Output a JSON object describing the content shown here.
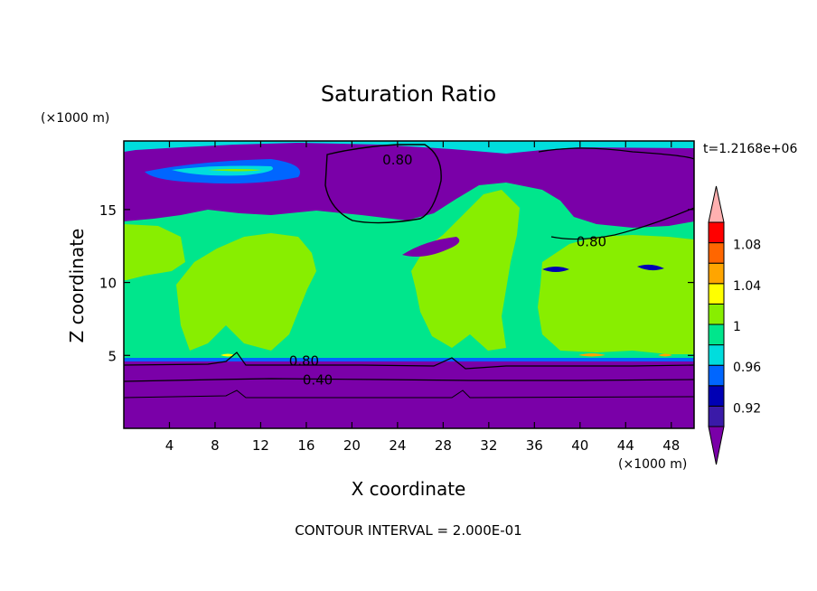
{
  "chart_data": {
    "type": "heatmap",
    "title": "Saturation Ratio",
    "xlabel": "X coordinate",
    "ylabel": "Z coordinate",
    "x_unit": "(×1000 m)",
    "y_unit": "(×1000 m)",
    "time_label": "t=1.2168e+06",
    "footer": "CONTOUR INTERVAL = 2.000E-01",
    "xlim": [
      0,
      50
    ],
    "ylim": [
      0,
      19.7
    ],
    "x_ticks": [
      4,
      8,
      12,
      16,
      20,
      24,
      28,
      32,
      36,
      40,
      44,
      48
    ],
    "y_ticks": [
      5,
      10,
      15
    ],
    "contour_labels": [
      {
        "text": "0.80",
        "x": 24,
        "z": 18.4
      },
      {
        "text": "0.80",
        "x": 41,
        "z": 12.8
      },
      {
        "text": "0.80",
        "x": 15.8,
        "z": 4.6
      },
      {
        "text": "0.40",
        "x": 17,
        "z": 3.3
      }
    ],
    "colorbar": {
      "labels": [
        "1.08",
        "1.04",
        "1",
        "0.96",
        "0.92"
      ],
      "levels": [
        0.92,
        0.94,
        0.96,
        0.98,
        1.0,
        1.02,
        1.04,
        1.06,
        1.08,
        1.1
      ],
      "colors": [
        "#7a00a8",
        "#3a1aa8",
        "#0000b4",
        "#0066ff",
        "#00dddd",
        "#00e68c",
        "#88ee00",
        "#ffff00",
        "#ffa500",
        "#ff6600",
        "#ff0000",
        "#ffb0b0"
      ]
    }
  }
}
